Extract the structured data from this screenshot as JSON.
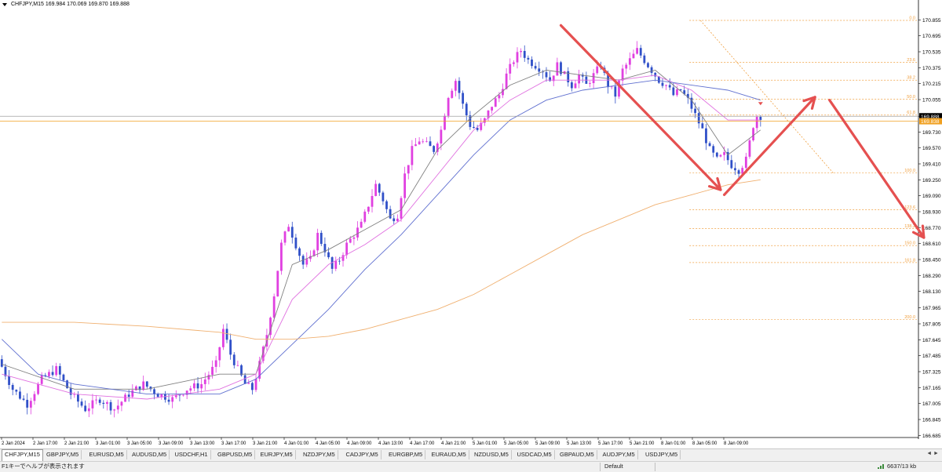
{
  "header": {
    "symbol_info": "CHFJPY,M15  169.984 170.069 169.870 169.888"
  },
  "colors": {
    "bull_candle": "#e040e0",
    "bear_candle": "#3050c8",
    "ma_fast": "#808080",
    "ma_mid": "#e070e0",
    "ma_slow": "#6070d0",
    "ma_long": "#f0b070",
    "fibo": "#f0a040",
    "arrow": "#e55050",
    "bid_line": "#a0a0a0",
    "ask_line": "#f0a020"
  },
  "chart_data": {
    "type": "candlestick",
    "symbol": "CHFJPY",
    "timeframe": "M15",
    "ylim": [
      166.68,
      170.96
    ],
    "y_ticks": [
      "170.855",
      "170.695",
      "170.535",
      "170.375",
      "170.215",
      "170.055",
      "169.888",
      "169.730",
      "169.570",
      "169.410",
      "169.250",
      "169.090",
      "168.930",
      "168.770",
      "168.610",
      "168.450",
      "168.290",
      "168.130",
      "167.965",
      "167.805",
      "167.645",
      "167.485",
      "167.325",
      "167.165",
      "167.005",
      "166.845",
      "166.685"
    ],
    "current_price": "169.888",
    "ask_price": "169.838",
    "x_ticks": [
      "2 Jan 2024",
      "2 Jan 17:00",
      "2 Jan 21:00",
      "3 Jan 01:00",
      "3 Jan 05:00",
      "3 Jan 09:00",
      "3 Jan 13:00",
      "3 Jan 17:00",
      "3 Jan 21:00",
      "4 Jan 01:00",
      "4 Jan 05:00",
      "4 Jan 09:00",
      "4 Jan 13:00",
      "4 Jan 17:00",
      "4 Jan 21:00",
      "5 Jan 01:00",
      "5 Jan 05:00",
      "5 Jan 09:00",
      "5 Jan 13:00",
      "5 Jan 17:00",
      "5 Jan 21:00",
      "8 Jan 01:00",
      "8 Jan 05:00",
      "8 Jan 09:00"
    ],
    "price_path": [
      [
        0,
        167.45
      ],
      [
        4,
        167.15
      ],
      [
        8,
        167.0
      ],
      [
        12,
        167.25
      ],
      [
        16,
        167.35
      ],
      [
        20,
        167.1
      ],
      [
        24,
        166.95
      ],
      [
        28,
        167.05
      ],
      [
        32,
        166.95
      ],
      [
        36,
        167.1
      ],
      [
        40,
        167.2
      ],
      [
        44,
        167.1
      ],
      [
        48,
        167.05
      ],
      [
        52,
        167.15
      ],
      [
        56,
        167.2
      ],
      [
        60,
        167.4
      ],
      [
        62,
        167.75
      ],
      [
        64,
        167.5
      ],
      [
        66,
        167.35
      ],
      [
        68,
        167.2
      ],
      [
        70,
        167.15
      ],
      [
        72,
        167.4
      ],
      [
        74,
        167.7
      ],
      [
        76,
        168.1
      ],
      [
        78,
        168.6
      ],
      [
        80,
        168.8
      ],
      [
        82,
        168.6
      ],
      [
        84,
        168.4
      ],
      [
        86,
        168.45
      ],
      [
        88,
        168.7
      ],
      [
        90,
        168.55
      ],
      [
        92,
        168.35
      ],
      [
        94,
        168.45
      ],
      [
        96,
        168.6
      ],
      [
        98,
        168.7
      ],
      [
        100,
        168.8
      ],
      [
        102,
        169.0
      ],
      [
        104,
        169.2
      ],
      [
        106,
        169.05
      ],
      [
        108,
        168.85
      ],
      [
        110,
        168.9
      ],
      [
        112,
        169.3
      ],
      [
        114,
        169.55
      ],
      [
        116,
        169.65
      ],
      [
        118,
        169.6
      ],
      [
        120,
        169.55
      ],
      [
        122,
        169.75
      ],
      [
        124,
        170.1
      ],
      [
        126,
        170.25
      ],
      [
        128,
        170.0
      ],
      [
        130,
        169.8
      ],
      [
        132,
        169.75
      ],
      [
        134,
        169.85
      ],
      [
        136,
        170.0
      ],
      [
        138,
        170.1
      ],
      [
        140,
        170.3
      ],
      [
        142,
        170.45
      ],
      [
        144,
        170.55
      ],
      [
        146,
        170.45
      ],
      [
        148,
        170.4
      ],
      [
        150,
        170.35
      ],
      [
        152,
        170.25
      ],
      [
        154,
        170.4
      ],
      [
        156,
        170.3
      ],
      [
        158,
        170.2
      ],
      [
        160,
        170.3
      ],
      [
        162,
        170.2
      ],
      [
        164,
        170.3
      ],
      [
        166,
        170.4
      ],
      [
        168,
        170.2
      ],
      [
        170,
        170.1
      ],
      [
        172,
        170.35
      ],
      [
        174,
        170.45
      ],
      [
        176,
        170.55
      ],
      [
        178,
        170.45
      ],
      [
        180,
        170.35
      ],
      [
        182,
        170.25
      ],
      [
        184,
        170.2
      ],
      [
        186,
        170.1
      ],
      [
        188,
        170.15
      ],
      [
        190,
        170.05
      ],
      [
        192,
        169.9
      ],
      [
        194,
        169.75
      ],
      [
        196,
        169.55
      ],
      [
        198,
        169.45
      ],
      [
        200,
        169.5
      ],
      [
        202,
        169.4
      ],
      [
        204,
        169.35
      ],
      [
        206,
        169.45
      ],
      [
        208,
        169.8
      ],
      [
        209,
        169.89
      ]
    ],
    "moving_averages": [
      {
        "id": "ma_fast",
        "path": [
          [
            0,
            167.4
          ],
          [
            20,
            167.15
          ],
          [
            40,
            167.15
          ],
          [
            60,
            167.3
          ],
          [
            70,
            167.3
          ],
          [
            80,
            168.4
          ],
          [
            90,
            168.55
          ],
          [
            100,
            168.75
          ],
          [
            110,
            168.95
          ],
          [
            120,
            169.55
          ],
          [
            130,
            169.9
          ],
          [
            140,
            170.2
          ],
          [
            150,
            170.35
          ],
          [
            160,
            170.3
          ],
          [
            170,
            170.25
          ],
          [
            180,
            170.35
          ],
          [
            190,
            170.05
          ],
          [
            200,
            169.5
          ],
          [
            209,
            169.75
          ]
        ]
      },
      {
        "id": "ma_mid",
        "path": [
          [
            0,
            167.3
          ],
          [
            20,
            167.1
          ],
          [
            40,
            167.05
          ],
          [
            60,
            167.15
          ],
          [
            70,
            167.3
          ],
          [
            80,
            168.05
          ],
          [
            90,
            168.4
          ],
          [
            100,
            168.6
          ],
          [
            110,
            168.85
          ],
          [
            120,
            169.3
          ],
          [
            130,
            169.75
          ],
          [
            140,
            170.05
          ],
          [
            150,
            170.25
          ],
          [
            160,
            170.25
          ],
          [
            170,
            170.25
          ],
          [
            180,
            170.3
          ],
          [
            190,
            170.15
          ],
          [
            200,
            169.85
          ],
          [
            209,
            169.85
          ]
        ]
      },
      {
        "id": "ma_slow",
        "path": [
          [
            0,
            167.65
          ],
          [
            10,
            167.3
          ],
          [
            20,
            167.2
          ],
          [
            40,
            167.1
          ],
          [
            60,
            167.1
          ],
          [
            70,
            167.25
          ],
          [
            80,
            167.6
          ],
          [
            90,
            167.95
          ],
          [
            100,
            168.35
          ],
          [
            110,
            168.7
          ],
          [
            120,
            169.1
          ],
          [
            130,
            169.5
          ],
          [
            140,
            169.85
          ],
          [
            150,
            170.05
          ],
          [
            160,
            170.15
          ],
          [
            170,
            170.2
          ],
          [
            180,
            170.25
          ],
          [
            190,
            170.2
          ],
          [
            200,
            170.15
          ],
          [
            209,
            170.05
          ]
        ]
      },
      {
        "id": "ma_long",
        "path": [
          [
            0,
            167.82
          ],
          [
            20,
            167.82
          ],
          [
            40,
            167.78
          ],
          [
            60,
            167.72
          ],
          [
            70,
            167.65
          ],
          [
            80,
            167.65
          ],
          [
            90,
            167.68
          ],
          [
            100,
            167.75
          ],
          [
            110,
            167.85
          ],
          [
            120,
            167.95
          ],
          [
            130,
            168.1
          ],
          [
            140,
            168.3
          ],
          [
            150,
            168.5
          ],
          [
            160,
            168.7
          ],
          [
            170,
            168.85
          ],
          [
            180,
            169.0
          ],
          [
            190,
            169.1
          ],
          [
            200,
            169.2
          ],
          [
            209,
            169.25
          ]
        ]
      }
    ],
    "fibonacci": {
      "levels": [
        {
          "label": "0.0",
          "price": 170.85
        },
        {
          "label": "23.6",
          "price": 170.43
        },
        {
          "label": "38.2",
          "price": 170.25
        },
        {
          "label": "50.0",
          "price": 170.06
        },
        {
          "label": "61.8",
          "price": 169.9
        },
        {
          "label": "100.0",
          "price": 169.32
        },
        {
          "label": "123.6",
          "price": 168.95
        },
        {
          "label": "138.2",
          "price": 168.76
        },
        {
          "label": "150.0",
          "price": 168.59
        },
        {
          "label": "161.8",
          "price": 168.42
        },
        {
          "label": "200.0",
          "price": 167.85
        }
      ]
    },
    "annotations": [
      {
        "type": "arrow",
        "from": [
          154,
          170.8
        ],
        "to": [
          198,
          169.15
        ]
      },
      {
        "type": "arrow",
        "from": [
          199,
          169.1
        ],
        "to": [
          224,
          170.08
        ]
      },
      {
        "type": "arrow",
        "from": [
          228,
          170.05
        ],
        "to": [
          254,
          168.67
        ]
      }
    ]
  },
  "tabs": [
    {
      "label": "CHFJPY,M15",
      "active": true
    },
    {
      "label": "GBPJPY,M5"
    },
    {
      "label": "EURUSD,M5"
    },
    {
      "label": "AUDUSD,M5"
    },
    {
      "label": "USDCHF,H1"
    },
    {
      "label": "GBPUSD,M5"
    },
    {
      "label": "EURJPY,M5"
    },
    {
      "label": "NZDJPY,M5"
    },
    {
      "label": "CADJPY,M5"
    },
    {
      "label": "EURGBP,M5"
    },
    {
      "label": "EURAUD,M5"
    },
    {
      "label": "NZDUSD,M5"
    },
    {
      "label": "USDCAD,M5"
    },
    {
      "label": "GBPAUD,M5"
    },
    {
      "label": "AUDJPY,M5"
    },
    {
      "label": "USDJPY,M5"
    }
  ],
  "tab_scroll": "◄ ►",
  "status": {
    "help": "F1キーでヘルプが表示されます",
    "profile": "Default",
    "traffic": "6637/13 kb"
  }
}
